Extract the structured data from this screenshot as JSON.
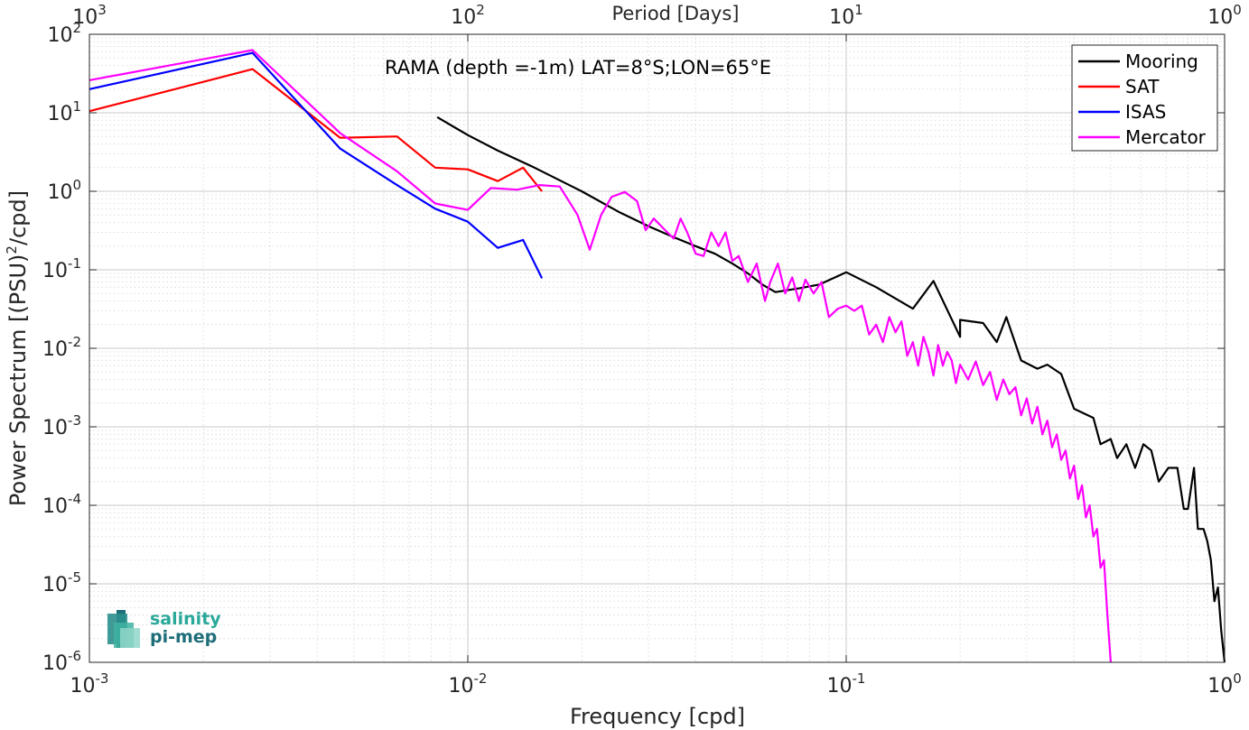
{
  "chart_data": {
    "type": "line",
    "title": "RAMA (depth =-1m) LAT=8°S;LON=65°E",
    "xlabel": "Frequency [cpd]",
    "ylabel": "Power Spectrum [(PSU)",
    "ylabel_sup": "2",
    "ylabel_tail": "/cpd]",
    "x2label": "Period [Days]",
    "xscale": "log",
    "yscale": "log",
    "xlim": [
      0.001,
      1
    ],
    "ylim": [
      1e-06,
      100
    ],
    "grid": true,
    "legend_position": "top-right",
    "x_ticks": [
      {
        "base": "10",
        "exp": "-3",
        "value": 0.001
      },
      {
        "base": "10",
        "exp": "-2",
        "value": 0.01
      },
      {
        "base": "10",
        "exp": "-1",
        "value": 0.1
      },
      {
        "base": "10",
        "exp": "0",
        "value": 1
      }
    ],
    "x2_ticks": [
      {
        "base": "10",
        "exp": "3",
        "value": 0.001
      },
      {
        "base": "10",
        "exp": "2",
        "value": 0.01
      },
      {
        "base": "10",
        "exp": "1",
        "value": 0.1
      },
      {
        "base": "10",
        "exp": "0",
        "value": 1
      }
    ],
    "y_ticks": [
      {
        "base": "10",
        "exp": "2",
        "value": 100
      },
      {
        "base": "10",
        "exp": "1",
        "value": 10
      },
      {
        "base": "10",
        "exp": "0",
        "value": 1
      },
      {
        "base": "10",
        "exp": "-1",
        "value": 0.1
      },
      {
        "base": "10",
        "exp": "-2",
        "value": 0.01
      },
      {
        "base": "10",
        "exp": "-3",
        "value": 0.001
      },
      {
        "base": "10",
        "exp": "-4",
        "value": 0.0001
      },
      {
        "base": "10",
        "exp": "-5",
        "value": 1e-05
      },
      {
        "base": "10",
        "exp": "-6",
        "value": 1e-06
      }
    ],
    "series": [
      {
        "name": "Mooring",
        "color": "#000000",
        "points": [
          [
            0.0083,
            8.8
          ],
          [
            0.01,
            5.2
          ],
          [
            0.012,
            3.3
          ],
          [
            0.015,
            2.0
          ],
          [
            0.02,
            1.0
          ],
          [
            0.025,
            0.55
          ],
          [
            0.03,
            0.36
          ],
          [
            0.035,
            0.26
          ],
          [
            0.04,
            0.2
          ],
          [
            0.045,
            0.16
          ],
          [
            0.05,
            0.12
          ],
          [
            0.055,
            0.09
          ],
          [
            0.06,
            0.065
          ],
          [
            0.065,
            0.052
          ],
          [
            0.075,
            0.058
          ],
          [
            0.085,
            0.065
          ],
          [
            0.1,
            0.093
          ],
          [
            0.12,
            0.06
          ],
          [
            0.15,
            0.032
          ],
          [
            0.17,
            0.072
          ],
          [
            0.2,
            0.014
          ],
          [
            0.2,
            0.023
          ],
          [
            0.23,
            0.021
          ],
          [
            0.25,
            0.012
          ],
          [
            0.265,
            0.025
          ],
          [
            0.29,
            0.007
          ],
          [
            0.32,
            0.0055
          ],
          [
            0.34,
            0.0062
          ],
          [
            0.37,
            0.0047
          ],
          [
            0.4,
            0.0017
          ],
          [
            0.45,
            0.0013
          ],
          [
            0.47,
            0.0006
          ],
          [
            0.5,
            0.0007
          ],
          [
            0.52,
            0.0004
          ],
          [
            0.55,
            0.0006
          ],
          [
            0.58,
            0.0003
          ],
          [
            0.61,
            0.0006
          ],
          [
            0.64,
            0.0005
          ],
          [
            0.67,
            0.0002
          ],
          [
            0.71,
            0.0003
          ],
          [
            0.75,
            0.0003
          ],
          [
            0.78,
            9e-05
          ],
          [
            0.8,
            9e-05
          ],
          [
            0.83,
            0.0003
          ],
          [
            0.85,
            5e-05
          ],
          [
            0.88,
            5e-05
          ],
          [
            0.9,
            3.5e-05
          ],
          [
            0.92,
            2e-05
          ],
          [
            0.94,
            6e-06
          ],
          [
            0.96,
            9e-06
          ],
          [
            0.98,
            2.5e-06
          ],
          [
            1.0,
            1e-06
          ]
        ]
      },
      {
        "name": "SAT",
        "color": "#ff0000",
        "points": [
          [
            0.001,
            10.5
          ],
          [
            0.0027,
            36
          ],
          [
            0.0046,
            4.8
          ],
          [
            0.0065,
            5.0
          ],
          [
            0.0082,
            2.0
          ],
          [
            0.01,
            1.9
          ],
          [
            0.012,
            1.35
          ],
          [
            0.014,
            2.0
          ],
          [
            0.0157,
            1.0
          ]
        ]
      },
      {
        "name": "ISAS",
        "color": "#0000ff",
        "points": [
          [
            0.001,
            20
          ],
          [
            0.0027,
            58
          ],
          [
            0.0046,
            3.5
          ],
          [
            0.0065,
            1.2
          ],
          [
            0.0082,
            0.6
          ],
          [
            0.01,
            0.41
          ],
          [
            0.012,
            0.19
          ],
          [
            0.014,
            0.24
          ],
          [
            0.0157,
            0.078
          ]
        ]
      },
      {
        "name": "Mercator",
        "color": "#ff00ff",
        "points": [
          [
            0.001,
            26
          ],
          [
            0.0027,
            63
          ],
          [
            0.0046,
            5.5
          ],
          [
            0.0065,
            1.8
          ],
          [
            0.0082,
            0.7
          ],
          [
            0.01,
            0.58
          ],
          [
            0.0115,
            1.1
          ],
          [
            0.0135,
            1.05
          ],
          [
            0.0155,
            1.2
          ],
          [
            0.0175,
            1.15
          ],
          [
            0.0195,
            0.5
          ],
          [
            0.021,
            0.18
          ],
          [
            0.0225,
            0.5
          ],
          [
            0.024,
            0.85
          ],
          [
            0.026,
            0.98
          ],
          [
            0.028,
            0.75
          ],
          [
            0.0295,
            0.32
          ],
          [
            0.031,
            0.45
          ],
          [
            0.033,
            0.33
          ],
          [
            0.035,
            0.25
          ],
          [
            0.0365,
            0.45
          ],
          [
            0.038,
            0.3
          ],
          [
            0.04,
            0.16
          ],
          [
            0.042,
            0.15
          ],
          [
            0.044,
            0.3
          ],
          [
            0.046,
            0.2
          ],
          [
            0.048,
            0.3
          ],
          [
            0.05,
            0.13
          ],
          [
            0.052,
            0.15
          ],
          [
            0.055,
            0.07
          ],
          [
            0.058,
            0.12
          ],
          [
            0.061,
            0.04
          ],
          [
            0.063,
            0.07
          ],
          [
            0.066,
            0.12
          ],
          [
            0.069,
            0.05
          ],
          [
            0.072,
            0.08
          ],
          [
            0.075,
            0.04
          ],
          [
            0.078,
            0.075
          ],
          [
            0.082,
            0.05
          ],
          [
            0.086,
            0.07
          ],
          [
            0.09,
            0.025
          ],
          [
            0.095,
            0.032
          ],
          [
            0.1,
            0.035
          ],
          [
            0.105,
            0.03
          ],
          [
            0.11,
            0.035
          ],
          [
            0.115,
            0.015
          ],
          [
            0.12,
            0.02
          ],
          [
            0.125,
            0.012
          ],
          [
            0.13,
            0.025
          ],
          [
            0.135,
            0.016
          ],
          [
            0.14,
            0.022
          ],
          [
            0.145,
            0.008
          ],
          [
            0.15,
            0.012
          ],
          [
            0.155,
            0.006
          ],
          [
            0.16,
            0.014
          ],
          [
            0.165,
            0.009
          ],
          [
            0.17,
            0.0045
          ],
          [
            0.175,
            0.011
          ],
          [
            0.18,
            0.006
          ],
          [
            0.185,
            0.009
          ],
          [
            0.19,
            0.007
          ],
          [
            0.195,
            0.0036
          ],
          [
            0.2,
            0.0062
          ],
          [
            0.21,
            0.004
          ],
          [
            0.22,
            0.0068
          ],
          [
            0.23,
            0.0034
          ],
          [
            0.24,
            0.005
          ],
          [
            0.25,
            0.0022
          ],
          [
            0.26,
            0.004
          ],
          [
            0.27,
            0.0026
          ],
          [
            0.28,
            0.0032
          ],
          [
            0.29,
            0.0014
          ],
          [
            0.3,
            0.0023
          ],
          [
            0.31,
            0.0011
          ],
          [
            0.32,
            0.0018
          ],
          [
            0.33,
            0.0008
          ],
          [
            0.34,
            0.0012
          ],
          [
            0.35,
            0.00055
          ],
          [
            0.36,
            0.0008
          ],
          [
            0.37,
            0.00038
          ],
          [
            0.38,
            0.0005
          ],
          [
            0.39,
            0.00022
          ],
          [
            0.4,
            0.00032
          ],
          [
            0.41,
            0.00012
          ],
          [
            0.42,
            0.00018
          ],
          [
            0.43,
            7e-05
          ],
          [
            0.44,
            0.0001
          ],
          [
            0.45,
            4e-05
          ],
          [
            0.46,
            5e-05
          ],
          [
            0.47,
            1.6e-05
          ],
          [
            0.48,
            2e-05
          ],
          [
            0.49,
            4e-06
          ],
          [
            0.5,
            1e-06
          ]
        ]
      }
    ]
  },
  "logo": {
    "line1": "salinity",
    "line2": "pi-mep",
    "colors": [
      "#2aa89a",
      "#1e6e7a"
    ]
  }
}
